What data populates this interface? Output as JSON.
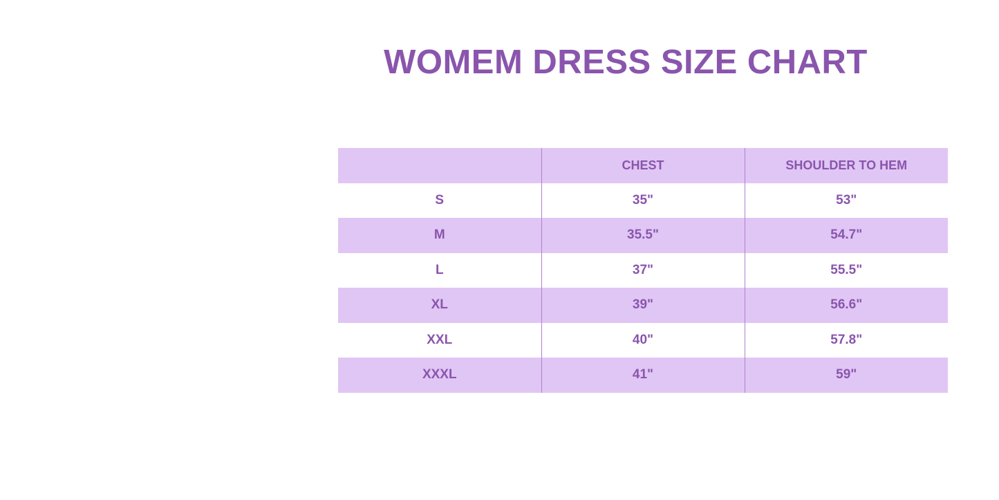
{
  "title": "WOMEM DRESS SIZE CHART",
  "colors": {
    "accent": "#8a55ad",
    "row_shade": "#e0c6f4"
  },
  "table": {
    "headers": [
      "",
      "CHEST",
      "SHOULDER TO HEM"
    ],
    "rows": [
      [
        "S",
        "35\"",
        "53\""
      ],
      [
        "M",
        "35.5\"",
        "54.7\""
      ],
      [
        "L",
        "37\"",
        "55.5\""
      ],
      [
        "XL",
        "39\"",
        "56.6\""
      ],
      [
        "XXL",
        "40\"",
        "57.8\""
      ],
      [
        "XXXL",
        "41\"",
        "59\""
      ]
    ]
  }
}
